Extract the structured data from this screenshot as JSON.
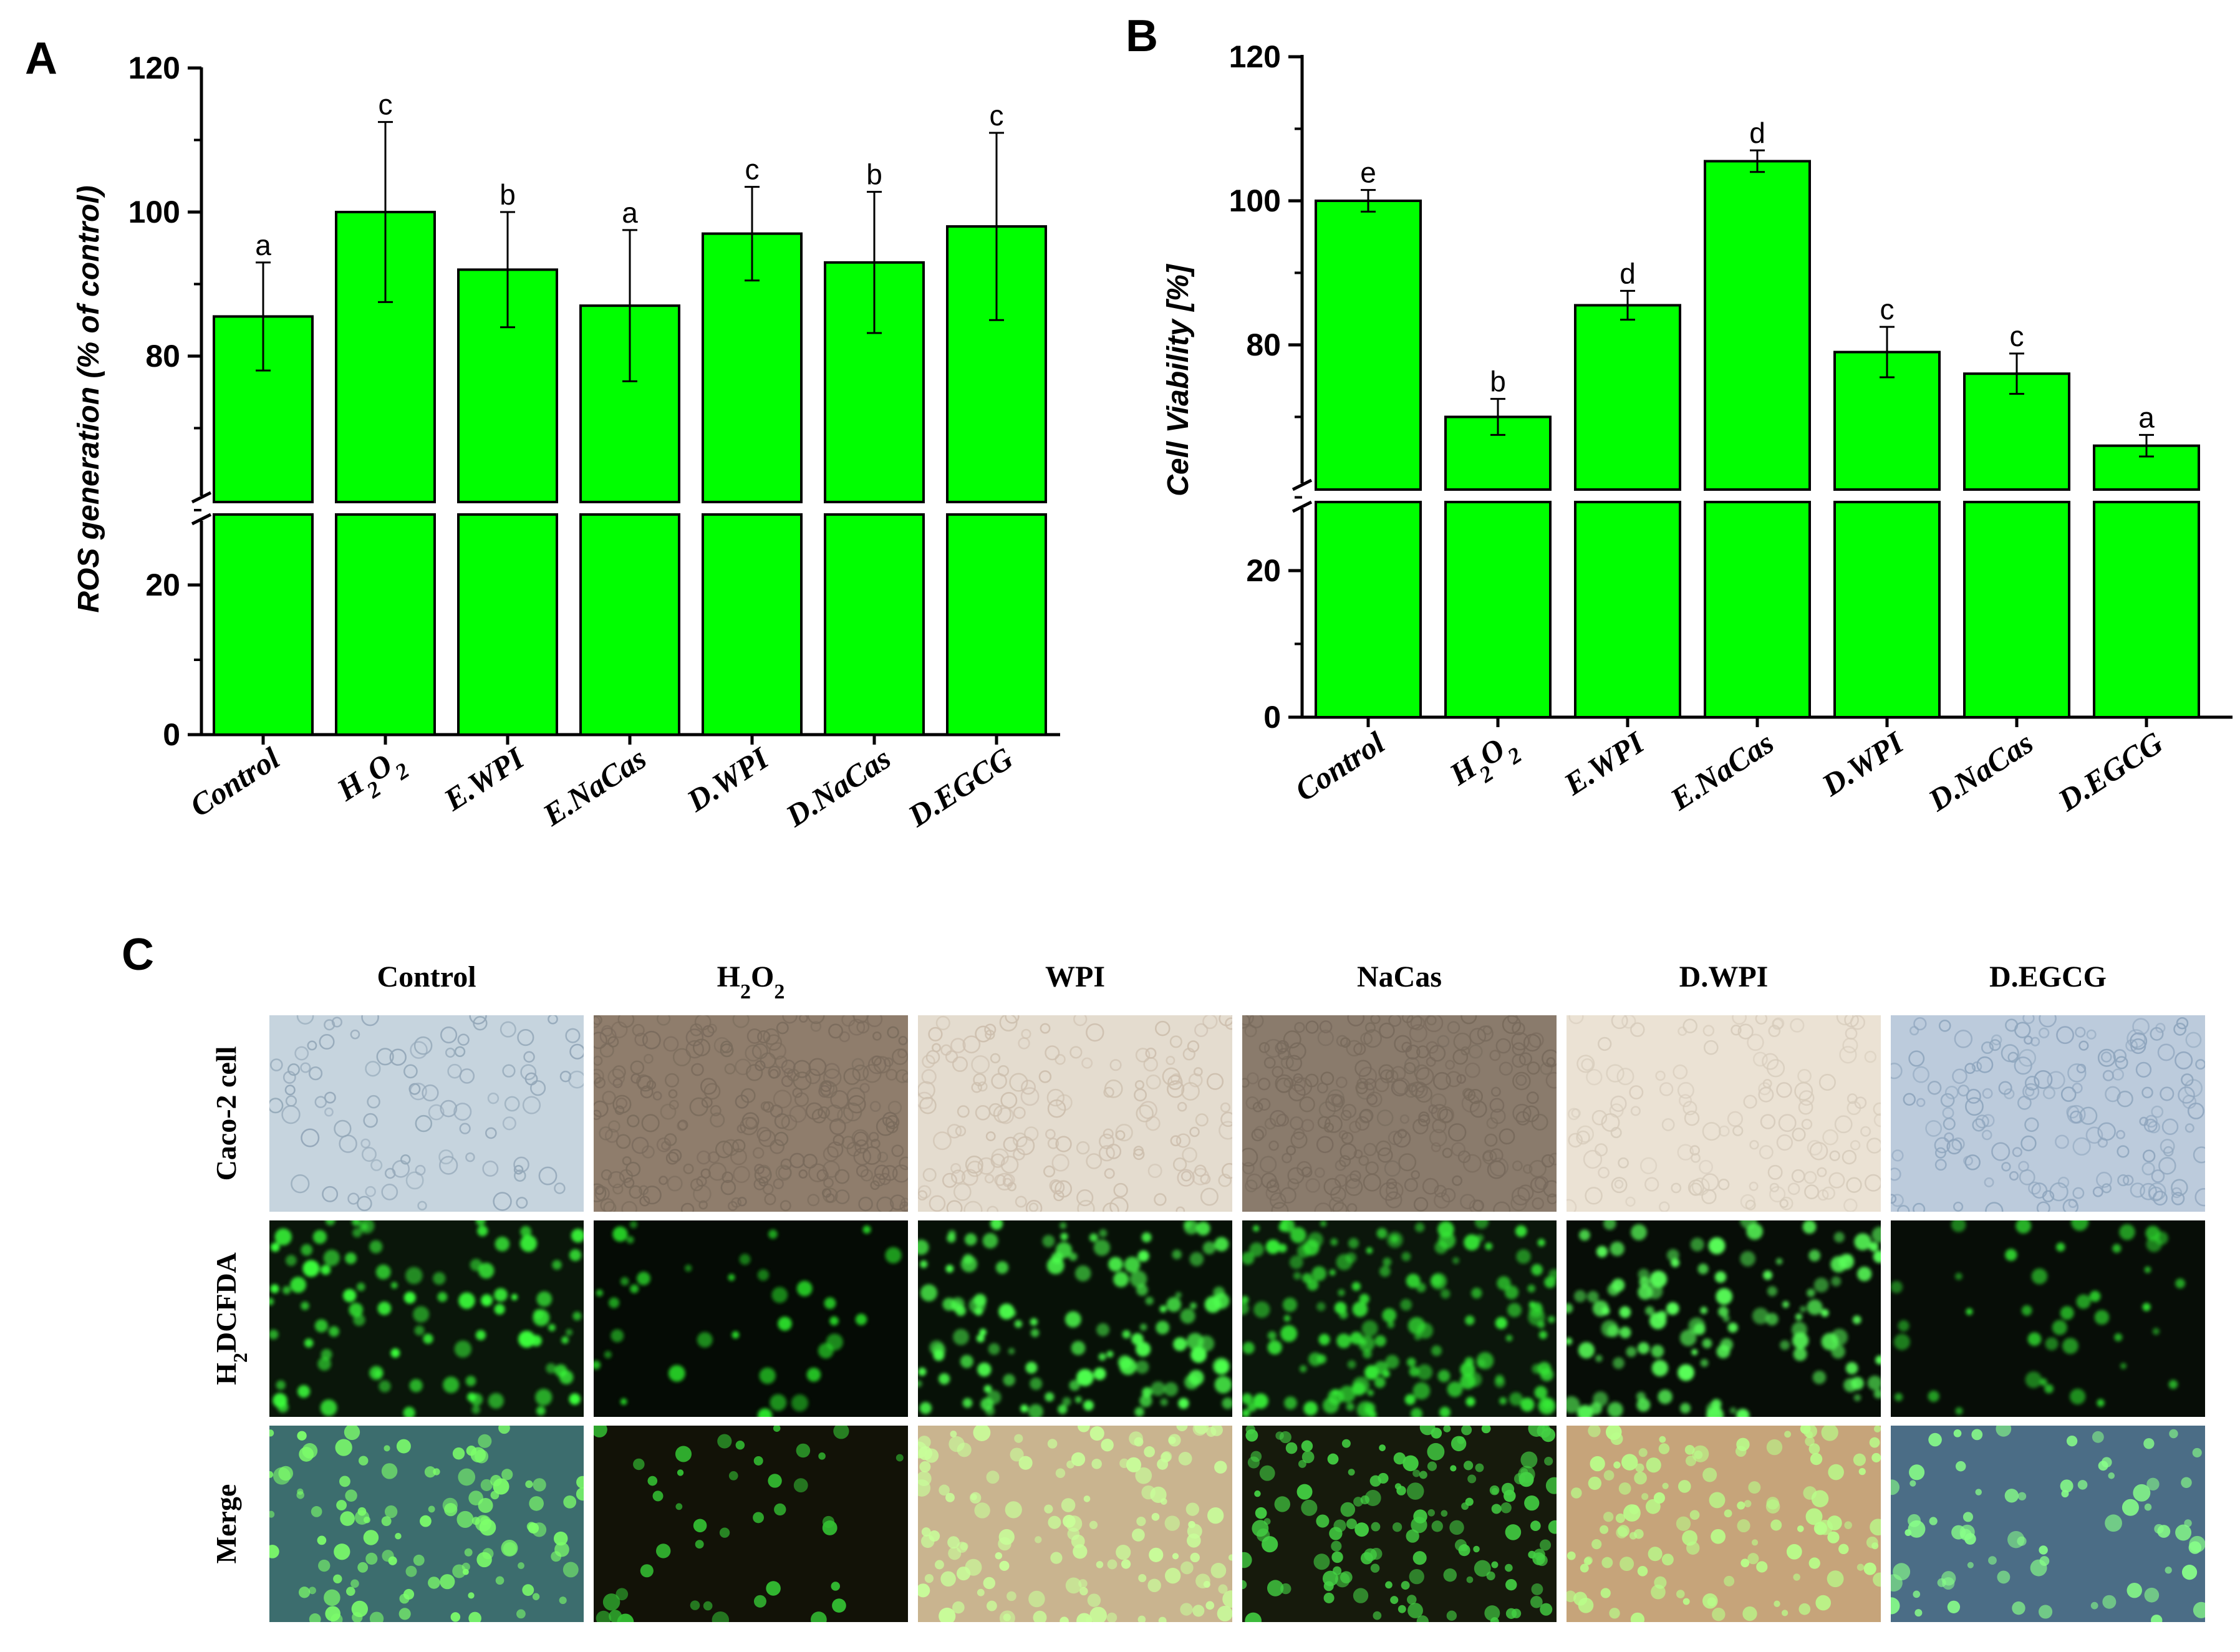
{
  "colors": {
    "bar_fill": "#00ff00",
    "bar_stroke": "#000000",
    "axis": "#000000"
  },
  "panels": {
    "A": {
      "letter": "A"
    },
    "B": {
      "letter": "B"
    },
    "C": {
      "letter": "C"
    }
  },
  "chart_data": [
    {
      "type": "bar",
      "panel": "A",
      "ylabel": "ROS generation (% of control)",
      "xlabel": "",
      "ylim_lower": [
        0,
        30
      ],
      "ylim_upper": [
        60,
        120
      ],
      "axis_break": true,
      "yticks_lower": [
        "0",
        "20"
      ],
      "yticks_upper": [
        "80",
        "100",
        "120"
      ],
      "categories": [
        "Control",
        "H2O2",
        "E.WPI",
        "E.NaCas",
        "D.WPI",
        "D.NaCas",
        "D.EGCG"
      ],
      "values": [
        85.5,
        100,
        92,
        87,
        97,
        93,
        98
      ],
      "errors": [
        7.5,
        12.5,
        8,
        10.5,
        6.5,
        9.8,
        13
      ],
      "letters": [
        "a",
        "c",
        "b",
        "a",
        "c",
        "b",
        "c"
      ]
    },
    {
      "type": "bar",
      "panel": "B",
      "ylabel": "Cell Viability [%]",
      "xlabel": "",
      "ylim_lower": [
        0,
        30
      ],
      "ylim_upper": [
        60,
        120
      ],
      "axis_break": true,
      "yticks_lower": [
        "0",
        "20"
      ],
      "yticks_upper": [
        "80",
        "100",
        "120"
      ],
      "categories": [
        "Control",
        "H2O2",
        "E.WPI",
        "E.NaCas",
        "D.WPI",
        "D.NaCas",
        "D.EGCG"
      ],
      "values": [
        100,
        70,
        85.5,
        105.5,
        79,
        76,
        66
      ],
      "errors": [
        1.5,
        2.5,
        2,
        1.5,
        3.5,
        2.8,
        1.5
      ],
      "letters": [
        "e",
        "b",
        "d",
        "d",
        "c",
        "c",
        "a"
      ]
    }
  ],
  "micrographs": {
    "columns": [
      "Control",
      "H2O2",
      "WPI",
      "NaCas",
      "D.WPI",
      "D.EGCG"
    ],
    "rows": [
      "Caco-2 cell",
      "H2DCFDA",
      "Merge"
    ]
  }
}
